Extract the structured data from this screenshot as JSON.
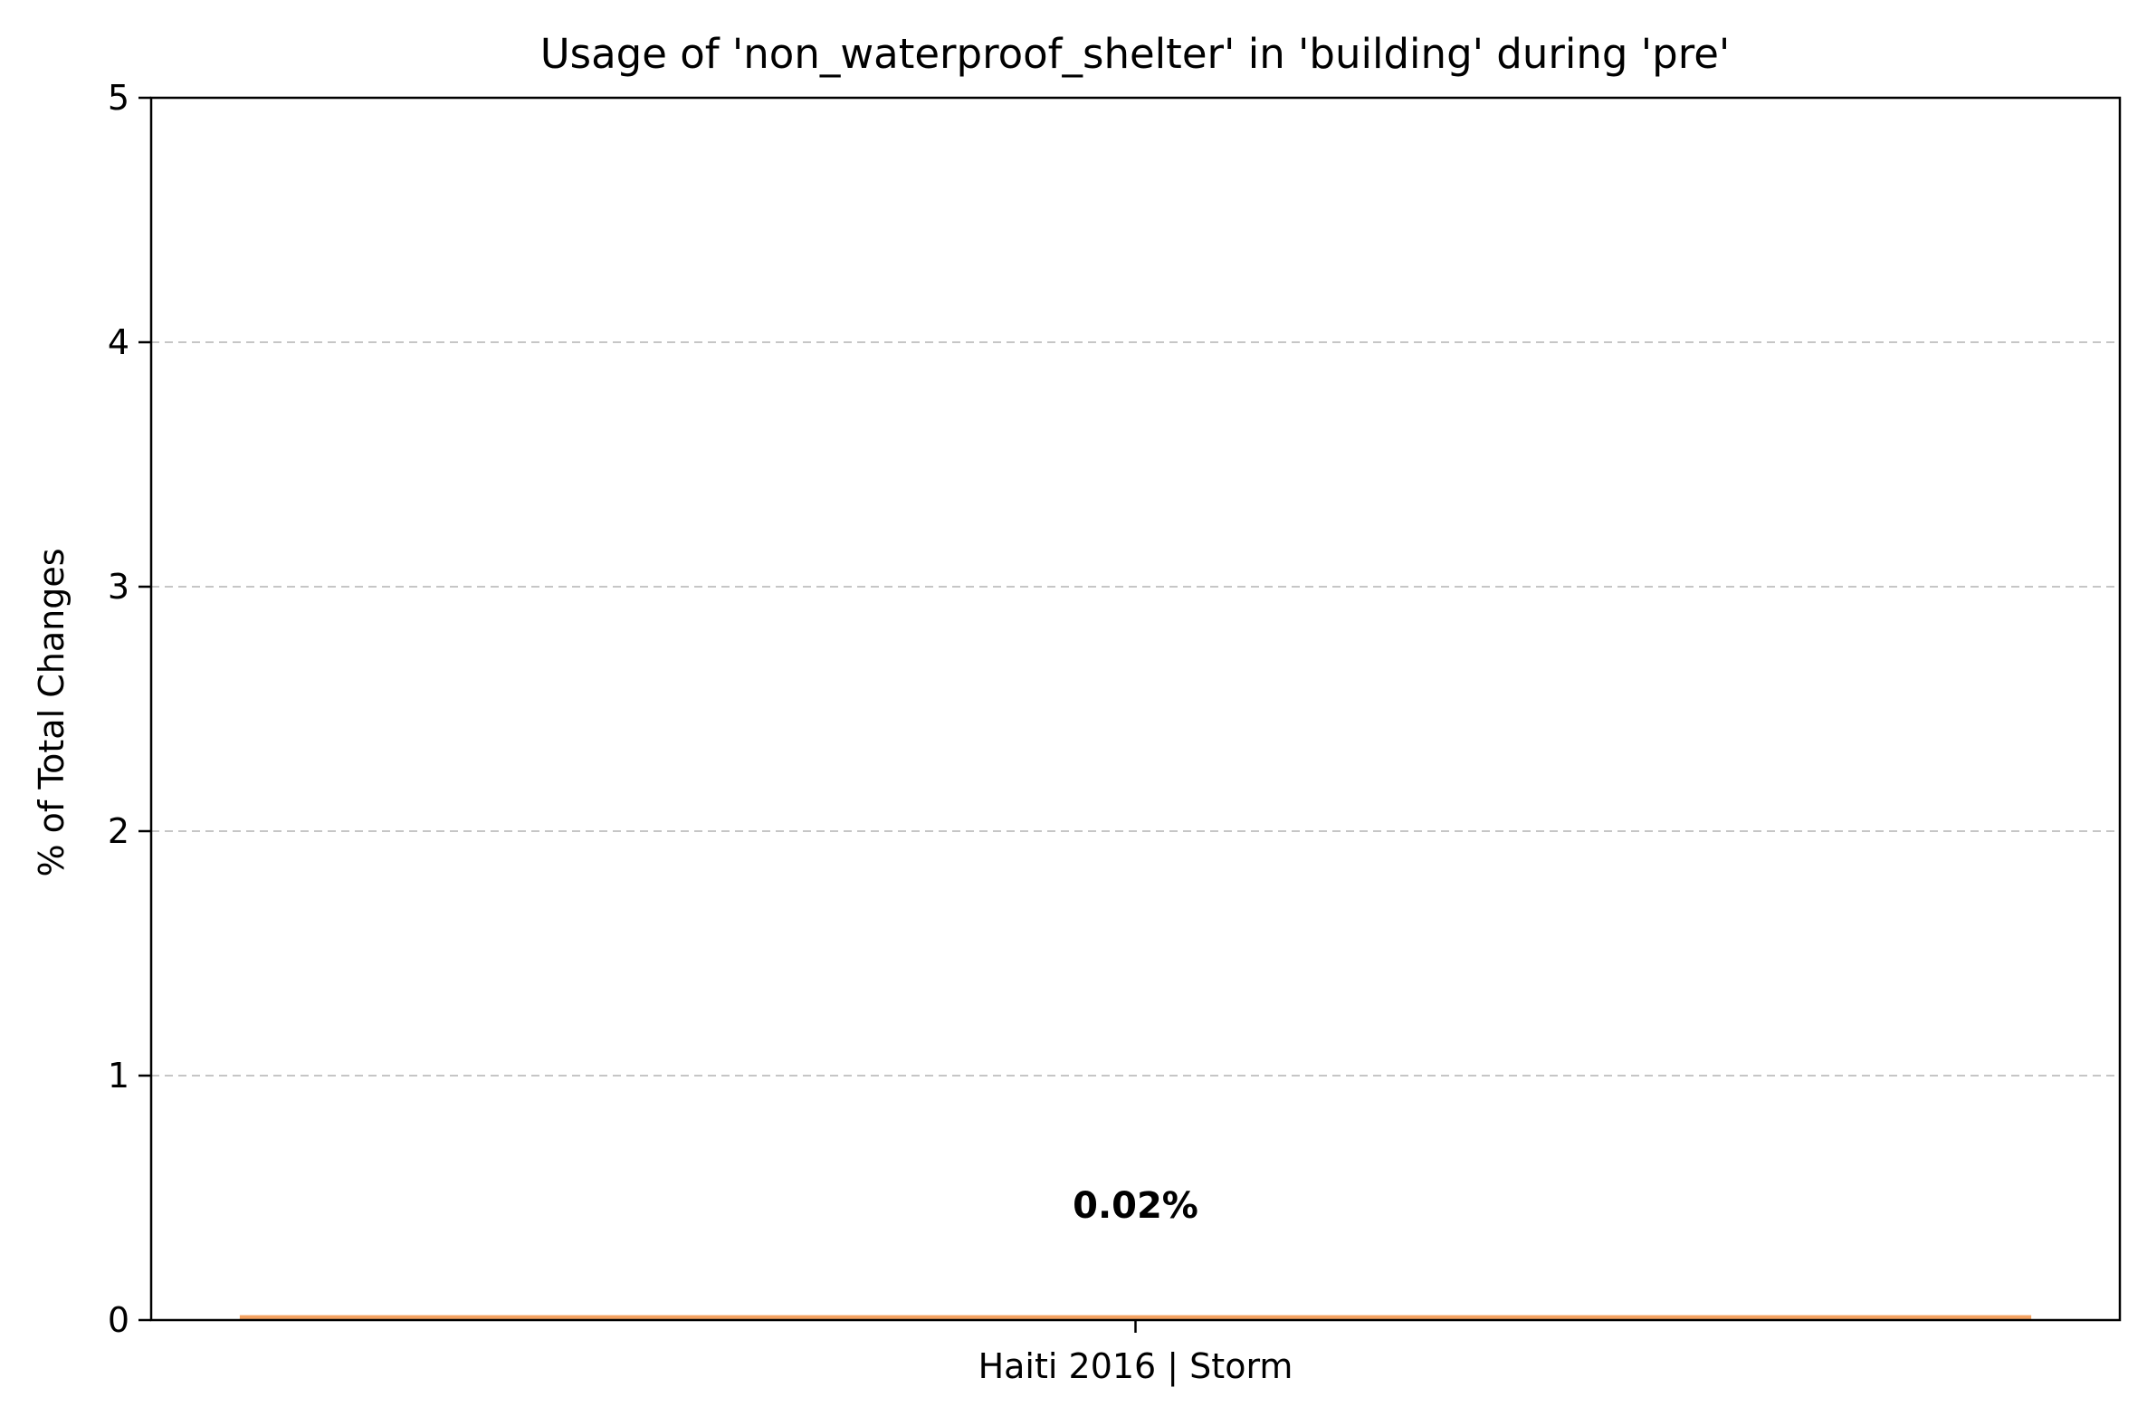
{
  "chart_data": {
    "type": "bar",
    "title": "Usage of 'non_waterproof_shelter' in 'building' during 'pre'",
    "xlabel": "",
    "ylabel": "% of Total Changes",
    "categories": [
      "Haiti 2016 | Storm"
    ],
    "values": [
      0.02
    ],
    "value_labels": [
      "0.02%"
    ],
    "ylim": [
      0,
      5
    ],
    "yticks": [
      0,
      1,
      2,
      3,
      4,
      5
    ],
    "ytick_labels": [
      "0",
      "1",
      "2",
      "3",
      "4",
      "5"
    ],
    "grid": "y-dashed",
    "bar_color": "#f4a261",
    "legend": "none"
  }
}
